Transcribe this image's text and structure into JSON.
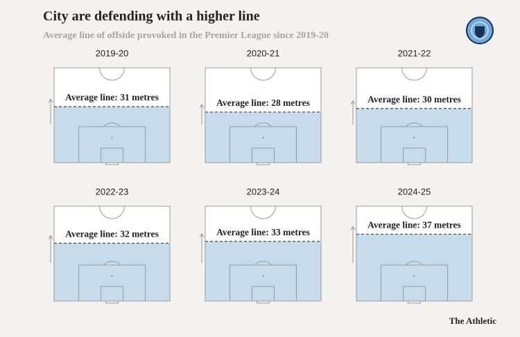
{
  "chart_data": {
    "type": "pitch",
    "title": "City are defending with a higher line",
    "subtitle": "Average line of offside provoked in the Premier League since 2019-20",
    "source": "The Athletic",
    "categories": [
      "2019-20",
      "2020-21",
      "2021-22",
      "2022-23",
      "2023-24",
      "2024-25"
    ],
    "values": [
      31,
      28,
      30,
      32,
      33,
      37
    ],
    "value_labels": [
      "Average line: 31 metres",
      "Average line: 28 metres",
      "Average line: 30 metres",
      "Average line: 32 metres",
      "Average line: 33 metres",
      "Average line: 37 metres"
    ],
    "ylim": [
      0,
      52.5
    ],
    "color": "#c6dcec"
  }
}
